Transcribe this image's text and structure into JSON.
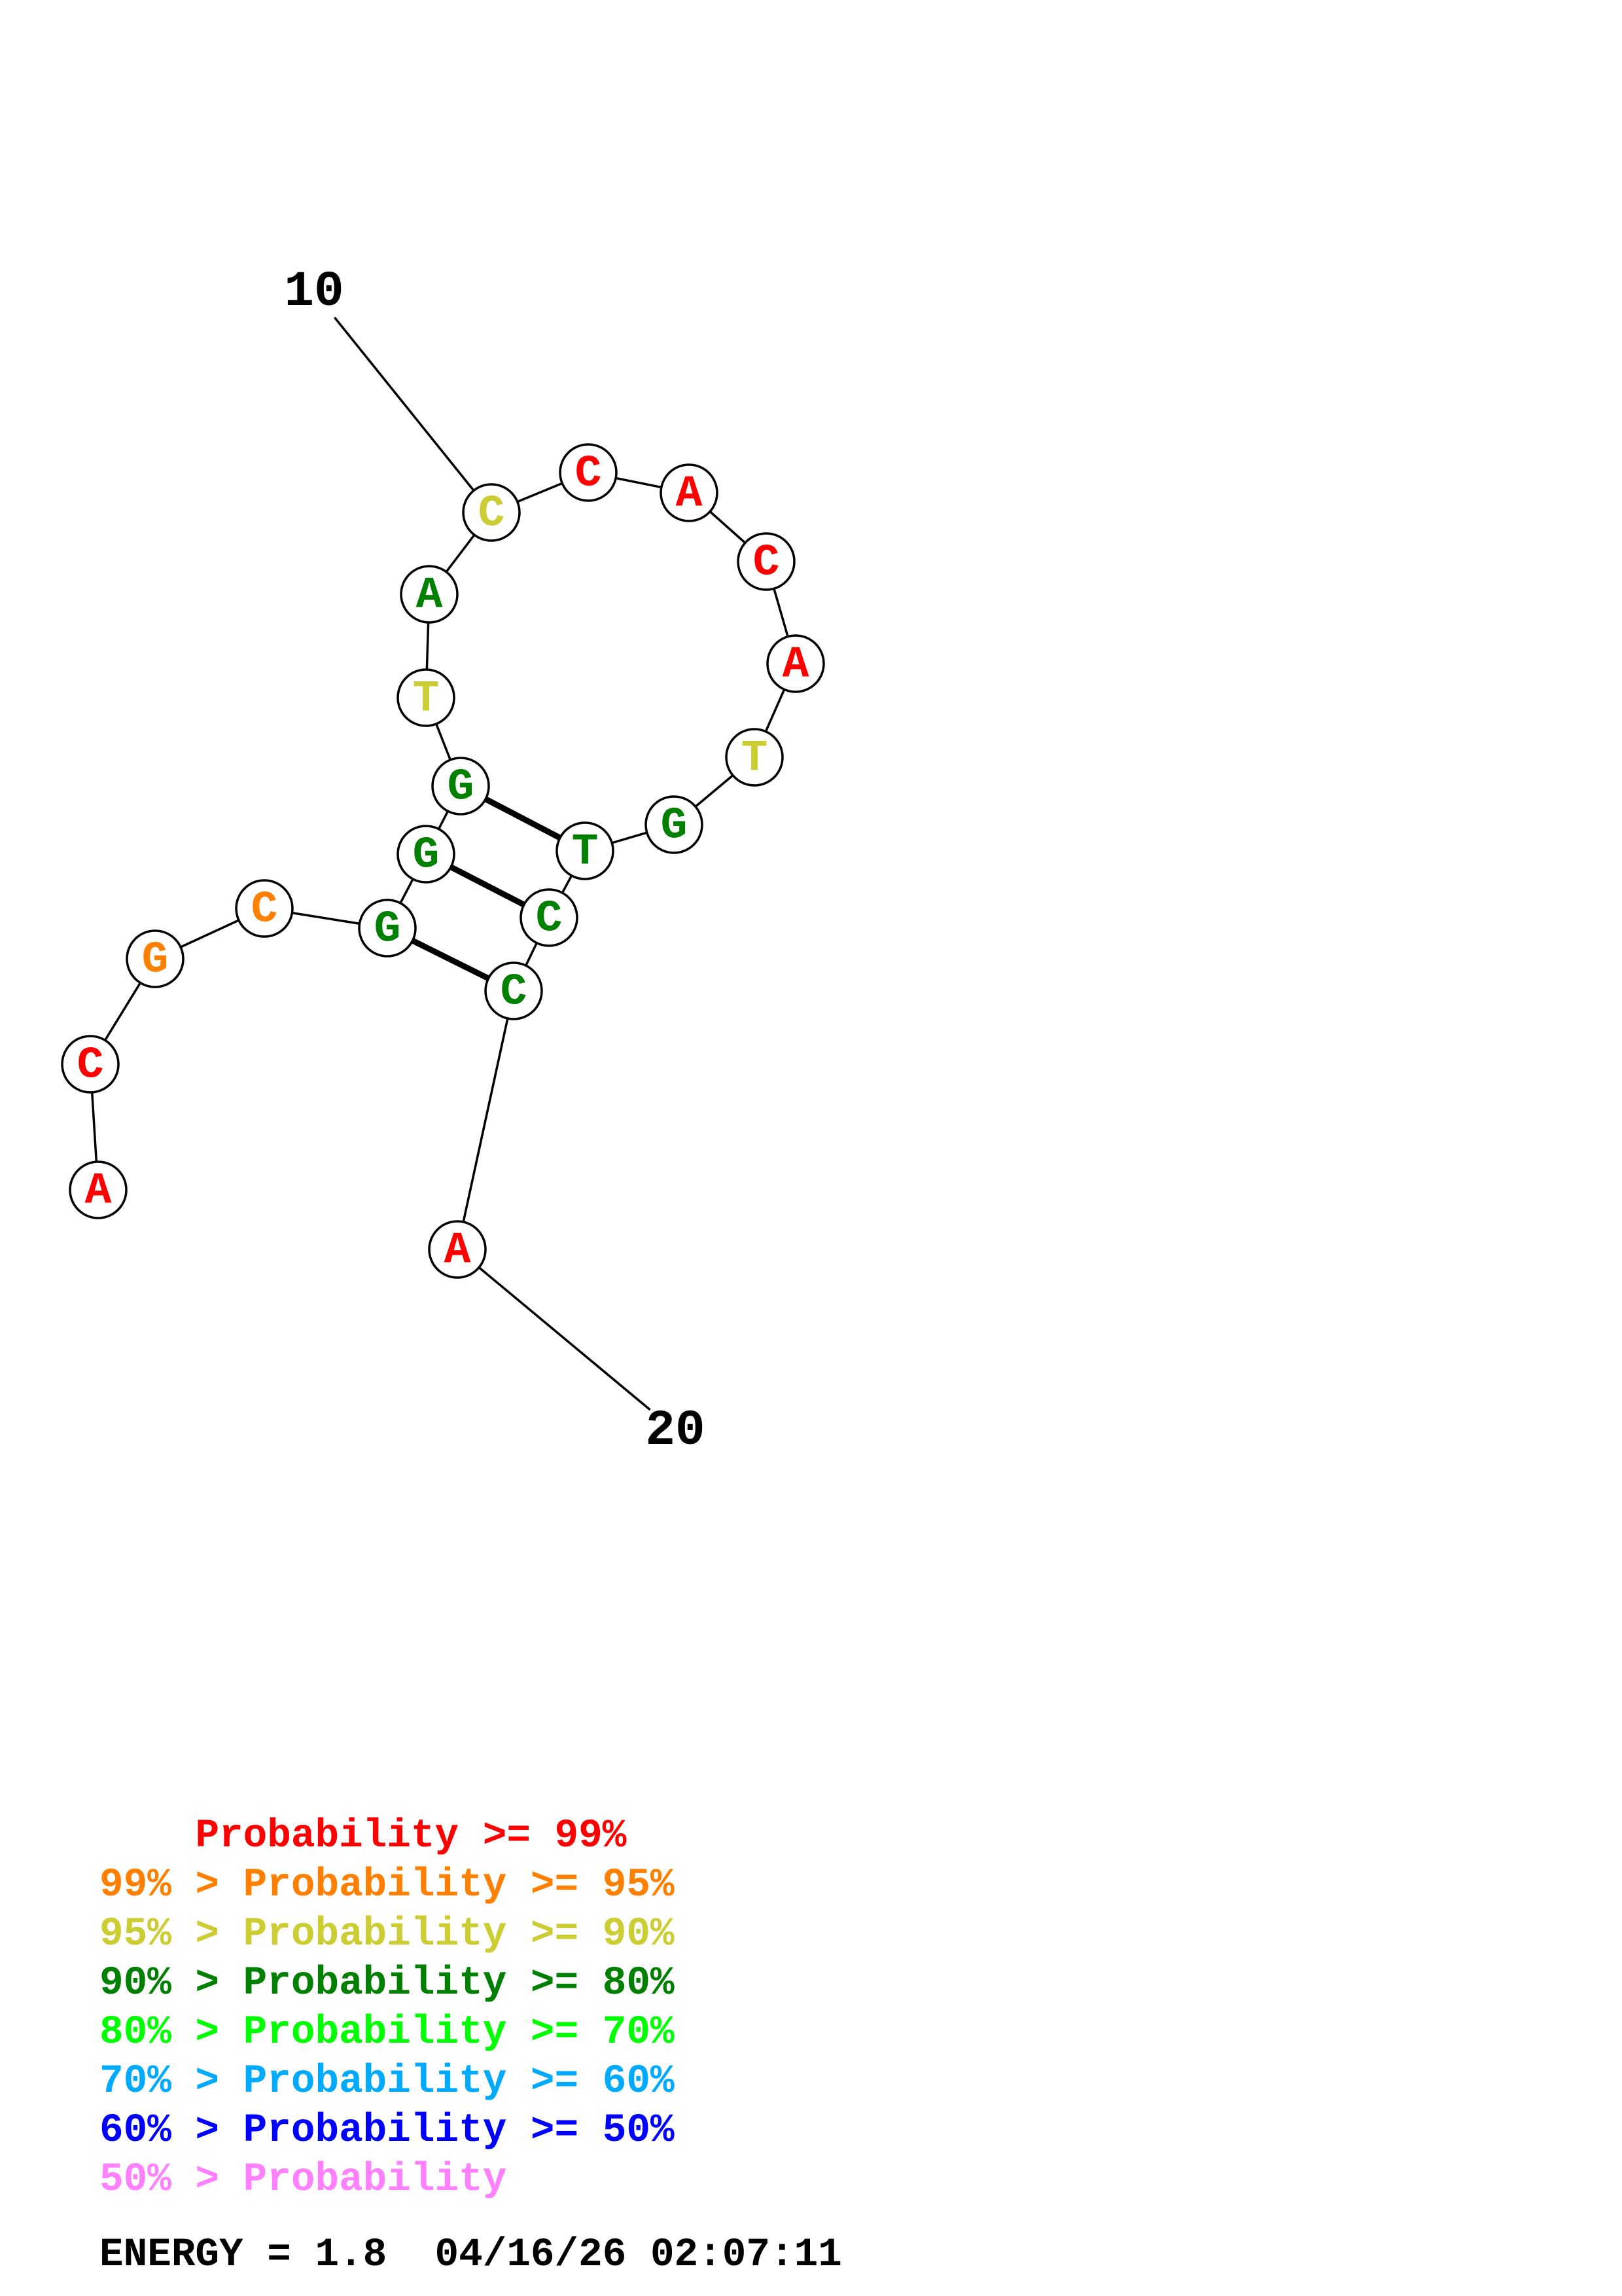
{
  "structure": {
    "nucleotides": [
      {
        "base": "A",
        "color": "#ff0000"
      },
      {
        "base": "C",
        "color": "#ff0000"
      },
      {
        "base": "G",
        "color": "#ff8000"
      },
      {
        "base": "C",
        "color": "#ff8000"
      },
      {
        "base": "G",
        "color": "#008000"
      },
      {
        "base": "G",
        "color": "#008000"
      },
      {
        "base": "G",
        "color": "#008000"
      },
      {
        "base": "T",
        "color": "#cccc33"
      },
      {
        "base": "A",
        "color": "#008000"
      },
      {
        "base": "C",
        "color": "#cccc33"
      },
      {
        "base": "C",
        "color": "#ff0000"
      },
      {
        "base": "A",
        "color": "#ff0000"
      },
      {
        "base": "C",
        "color": "#ff0000"
      },
      {
        "base": "A",
        "color": "#ff0000"
      },
      {
        "base": "T",
        "color": "#cccc33"
      },
      {
        "base": "G",
        "color": "#008000"
      },
      {
        "base": "T",
        "color": "#008000"
      },
      {
        "base": "C",
        "color": "#008000"
      },
      {
        "base": "C",
        "color": "#008000"
      },
      {
        "base": "A",
        "color": "#ff0000"
      }
    ],
    "pairs": [
      [
        7,
        17
      ],
      [
        6,
        18
      ],
      [
        5,
        19
      ]
    ],
    "position_labels": [
      {
        "position": 10,
        "text": "10"
      },
      {
        "position": 20,
        "text": "20"
      }
    ]
  },
  "legend": [
    {
      "prefix": "    ",
      "text": "Probability >= 99%",
      "color": "#ff0000"
    },
    {
      "prefix": "99% > ",
      "text": "Probability >= 95%",
      "color": "#ff8000"
    },
    {
      "prefix": "95% > ",
      "text": "Probability >= 90%",
      "color": "#cccc33"
    },
    {
      "prefix": "90% > ",
      "text": "Probability >= 80%",
      "color": "#008000"
    },
    {
      "prefix": "80% > ",
      "text": "Probability >= 70%",
      "color": "#00ff00"
    },
    {
      "prefix": "70% > ",
      "text": "Probability >= 60%",
      "color": "#00aaff"
    },
    {
      "prefix": "60% > ",
      "text": "Probability >= 50%",
      "color": "#0000ff"
    },
    {
      "prefix": "50% > ",
      "text": "Probability",
      "color": "#ff80ff"
    }
  ],
  "footer": {
    "energy_label": "ENERGY = 1.8",
    "timestamp": "04/16/26 02:07:11"
  }
}
